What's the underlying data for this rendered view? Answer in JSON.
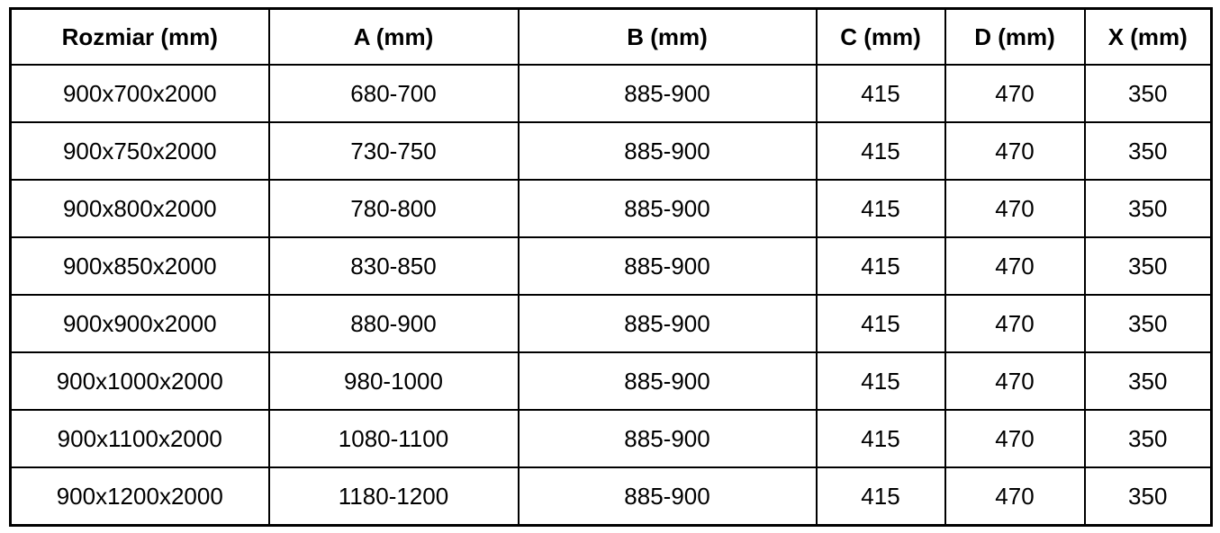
{
  "table": {
    "columns": [
      "Rozmiar (mm)",
      "A (mm)",
      "B (mm)",
      "C (mm)",
      "D (mm)",
      "X (mm)"
    ],
    "rows": [
      [
        "900x700x2000",
        "680-700",
        "885-900",
        "415",
        "470",
        "350"
      ],
      [
        "900x750x2000",
        "730-750",
        "885-900",
        "415",
        "470",
        "350"
      ],
      [
        "900x800x2000",
        "780-800",
        "885-900",
        "415",
        "470",
        "350"
      ],
      [
        "900x850x2000",
        "830-850",
        "885-900",
        "415",
        "470",
        "350"
      ],
      [
        "900x900x2000",
        "880-900",
        "885-900",
        "415",
        "470",
        "350"
      ],
      [
        "900x1000x2000",
        "980-1000",
        "885-900",
        "415",
        "470",
        "350"
      ],
      [
        "900x1100x2000",
        "1080-1100",
        "885-900",
        "415",
        "470",
        "350"
      ],
      [
        "900x1200x2000",
        "1180-1200",
        "885-900",
        "415",
        "470",
        "350"
      ]
    ],
    "colors": {
      "border": "#000000",
      "text": "#000000",
      "background": "#ffffff"
    }
  }
}
